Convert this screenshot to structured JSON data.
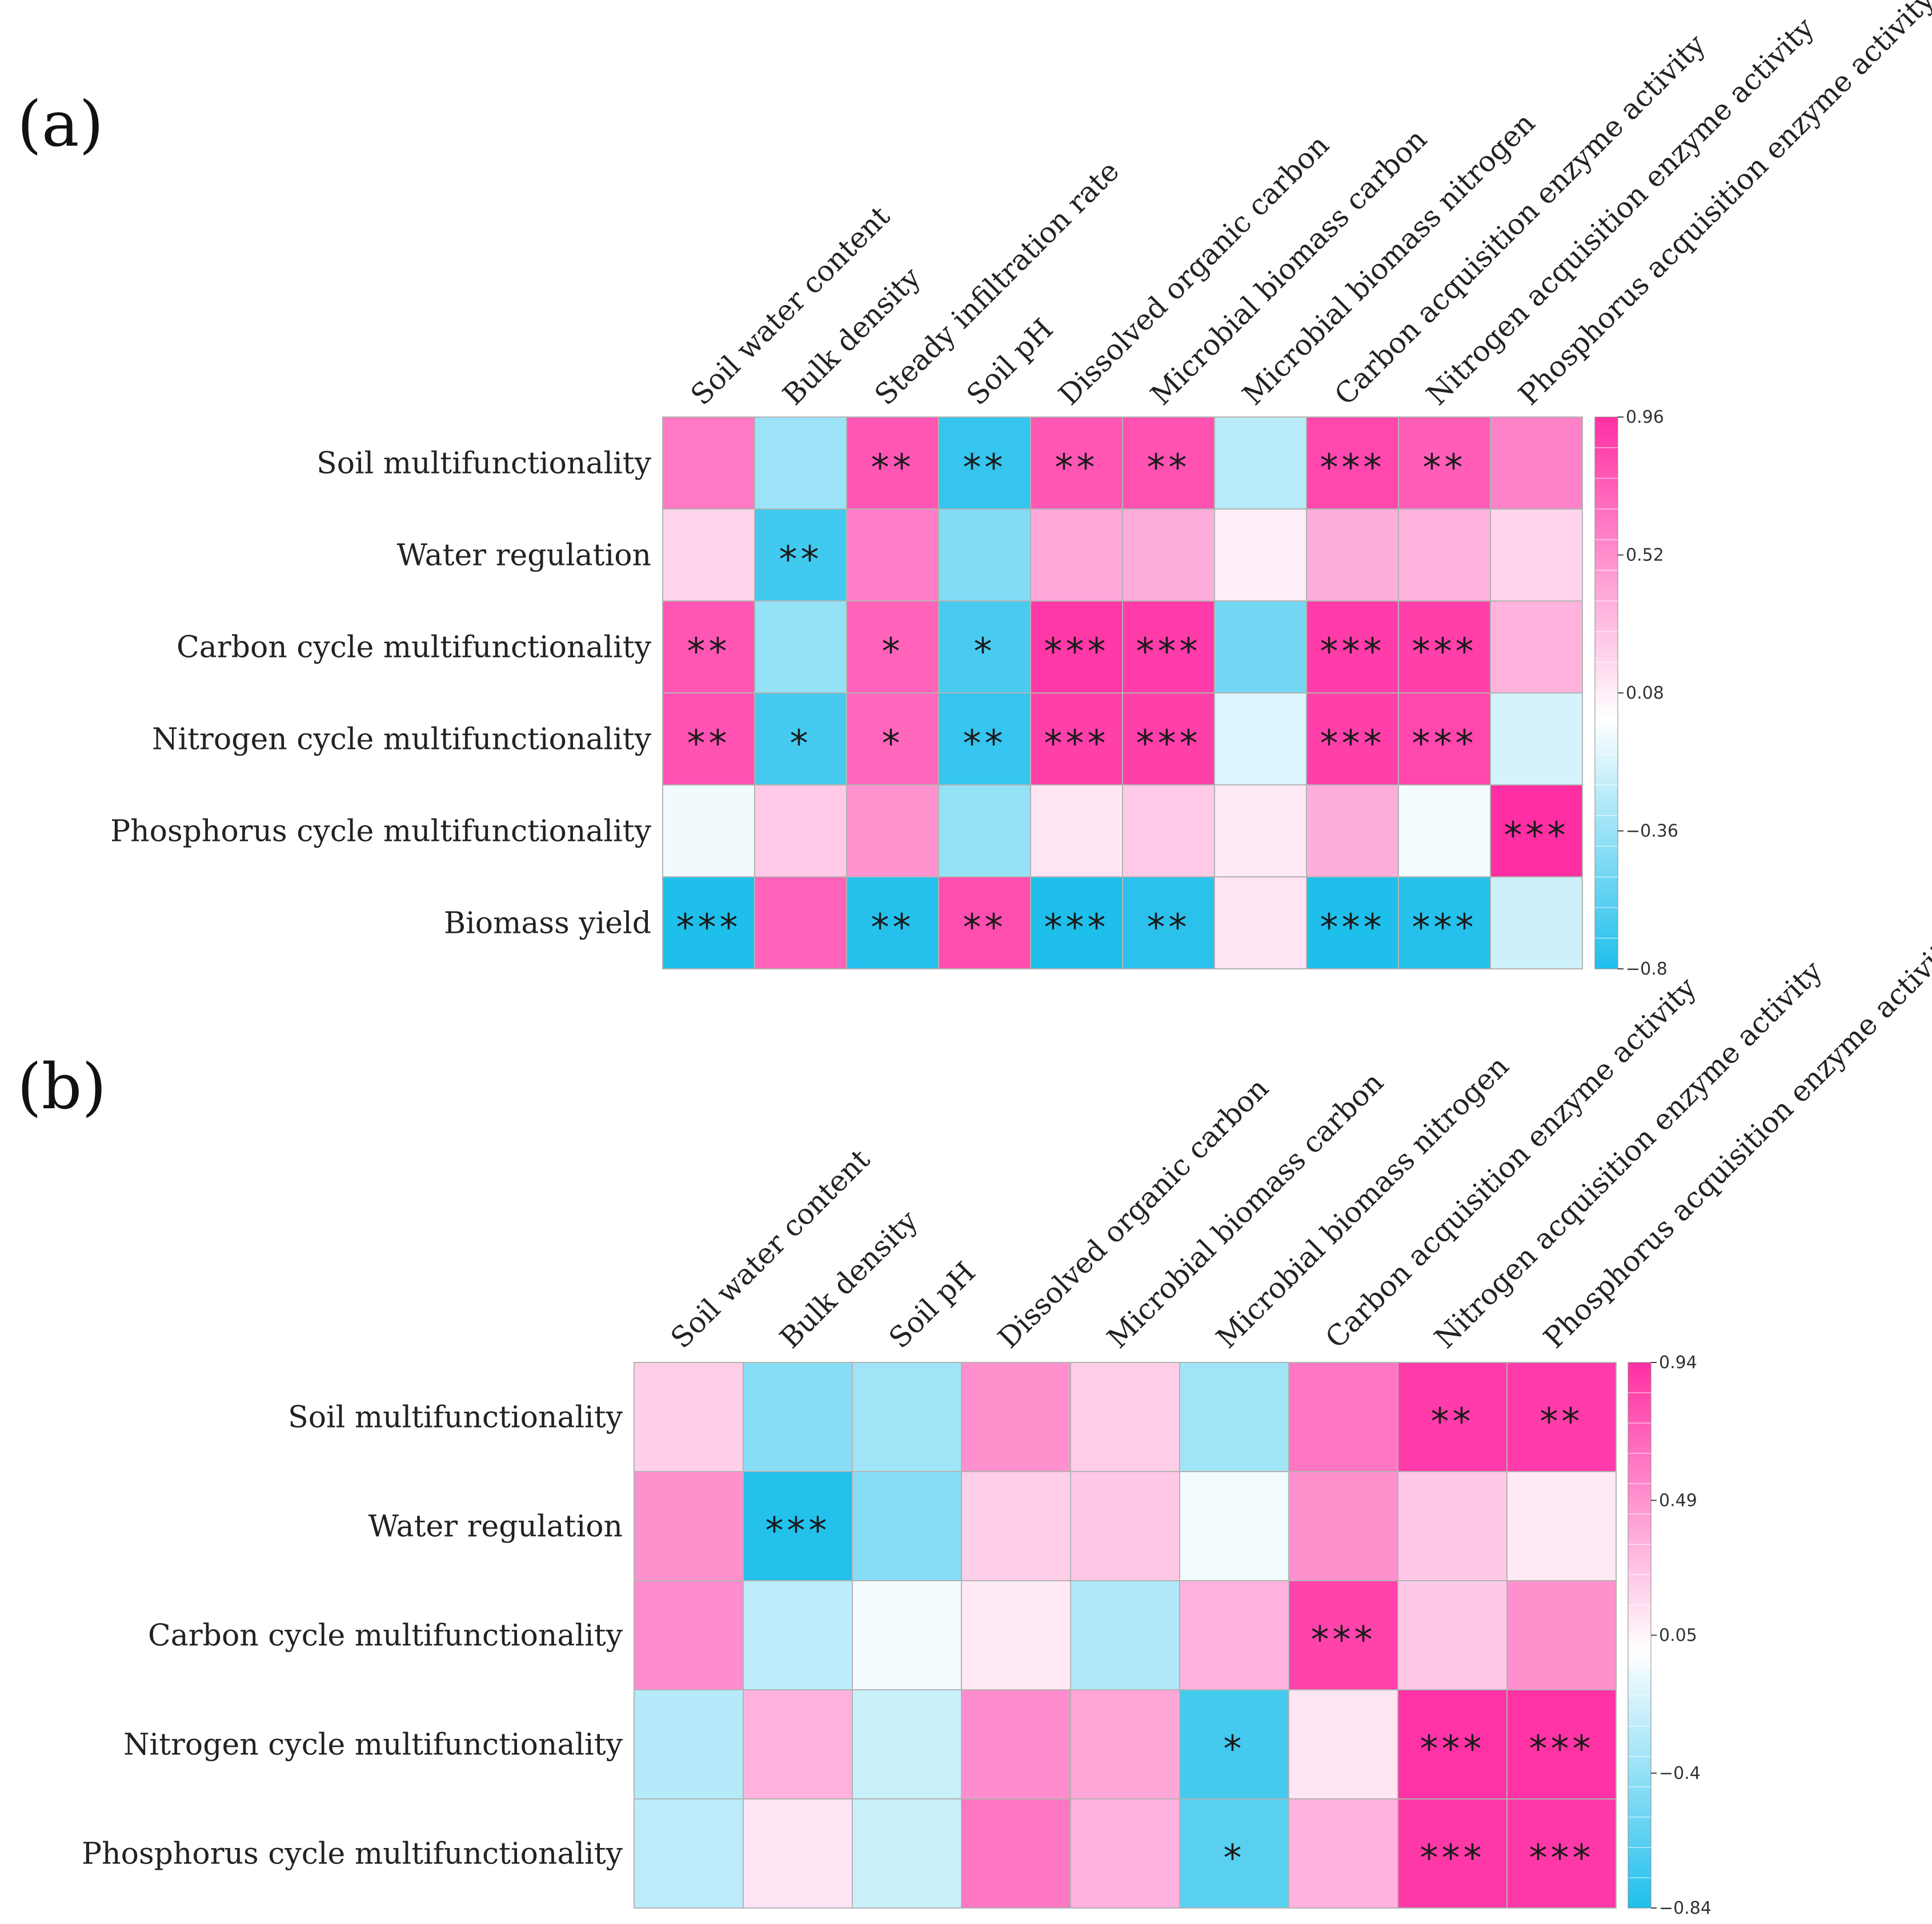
{
  "colors": {
    "negative": "#1fbfec",
    "mid": "#ffffff",
    "positive": "#ff2fa3"
  },
  "chart_data": [
    {
      "type": "heatmap",
      "panel_label": "(a)",
      "columns": [
        "Soil water content",
        "Bulk density",
        "Steady infiltration rate",
        "Soil pH",
        "Dissolved organic carbon",
        "Microbial biomass carbon",
        "Microbial biomass nitrogen",
        "Carbon acquisition enzyme activity",
        "Nitrogen acquisition enzyme activity",
        "Phosphorus acquisition enzyme activity"
      ],
      "rows": [
        "Soil multifunctionality",
        "Water regulation",
        "Carbon cycle multifunctionality",
        "Nitrogen cycle multifunctionality",
        "Phosphorus cycle multifunctionality",
        "Biomass yield"
      ],
      "values": [
        [
          0.62,
          -0.35,
          0.78,
          -0.72,
          0.78,
          0.8,
          -0.25,
          0.85,
          0.75,
          0.58
        ],
        [
          0.2,
          -0.68,
          0.6,
          -0.45,
          0.4,
          0.38,
          0.08,
          0.38,
          0.35,
          0.2
        ],
        [
          0.78,
          -0.38,
          0.72,
          -0.65,
          0.92,
          0.9,
          -0.5,
          0.9,
          0.88,
          0.35
        ],
        [
          0.8,
          -0.66,
          0.7,
          -0.72,
          0.88,
          0.88,
          -0.12,
          0.88,
          0.85,
          -0.15
        ],
        [
          -0.05,
          0.25,
          0.5,
          -0.38,
          0.12,
          0.25,
          0.1,
          0.38,
          -0.04,
          0.96
        ],
        [
          -0.8,
          0.72,
          -0.78,
          0.82,
          -0.8,
          -0.76,
          0.12,
          -0.8,
          -0.78,
          -0.18
        ]
      ],
      "significance": [
        [
          "",
          "",
          "**",
          "**",
          "**",
          "**",
          "",
          "***",
          "**",
          ""
        ],
        [
          "",
          "**",
          "",
          "",
          "",
          "",
          "",
          "",
          "",
          ""
        ],
        [
          "**",
          "",
          "*",
          "*",
          "***",
          "***",
          "",
          "***",
          "***",
          ""
        ],
        [
          "**",
          "*",
          "*",
          "**",
          "***",
          "***",
          "",
          "***",
          "***",
          ""
        ],
        [
          "",
          "",
          "",
          "",
          "",
          "",
          "",
          "",
          "",
          "***"
        ],
        [
          "***",
          "",
          "**",
          "**",
          "***",
          "**",
          "",
          "***",
          "***",
          ""
        ]
      ],
      "colorbar": {
        "min": -0.8,
        "max": 0.96,
        "ticks": [
          0.96,
          0.52,
          0.08,
          -0.36,
          -0.8
        ],
        "tick_labels": [
          "0.96",
          "0.52",
          "0.08",
          "−0.36",
          "−0.8"
        ]
      }
    },
    {
      "type": "heatmap",
      "panel_label": "(b)",
      "columns": [
        "Soil water content",
        "Bulk density",
        "Soil pH",
        "Dissolved organic carbon",
        "Microbial biomass carbon",
        "Microbial biomass nitrogen",
        "Carbon acquisition enzyme activity",
        "Nitrogen acquisition enzyme activity",
        "Phosphorus acquisition enzyme activity"
      ],
      "rows": [
        "Soil multifunctionality",
        "Water regulation",
        "Carbon cycle multifunctionality",
        "Nitrogen cycle multifunctionality",
        "Phosphorus cycle multifunctionality"
      ],
      "values": [
        [
          0.22,
          -0.45,
          -0.35,
          0.5,
          0.22,
          -0.35,
          0.62,
          0.88,
          0.88
        ],
        [
          0.5,
          -0.82,
          -0.45,
          0.22,
          0.25,
          -0.05,
          0.5,
          0.25,
          0.1
        ],
        [
          0.52,
          -0.25,
          -0.05,
          0.1,
          -0.3,
          0.35,
          0.85,
          0.25,
          0.5
        ],
        [
          -0.28,
          0.35,
          -0.2,
          0.52,
          0.4,
          -0.7,
          0.12,
          0.92,
          0.92
        ],
        [
          -0.25,
          0.12,
          -0.2,
          0.62,
          0.35,
          -0.62,
          0.35,
          0.9,
          0.9
        ]
      ],
      "significance": [
        [
          "",
          "",
          "",
          "",
          "",
          "",
          "",
          "**",
          "**"
        ],
        [
          "",
          "***",
          "",
          "",
          "",
          "",
          "",
          "",
          ""
        ],
        [
          "",
          "",
          "",
          "",
          "",
          "",
          "***",
          "",
          ""
        ],
        [
          "",
          "",
          "",
          "",
          "",
          "*",
          "",
          "***",
          "***"
        ],
        [
          "",
          "",
          "",
          "",
          "",
          "*",
          "",
          "***",
          "***"
        ]
      ],
      "colorbar": {
        "min": -0.84,
        "max": 0.94,
        "ticks": [
          0.94,
          0.49,
          0.05,
          -0.4,
          -0.84
        ],
        "tick_labels": [
          "0.94",
          "0.49",
          "0.05",
          "−0.4",
          "−0.84"
        ]
      }
    }
  ]
}
